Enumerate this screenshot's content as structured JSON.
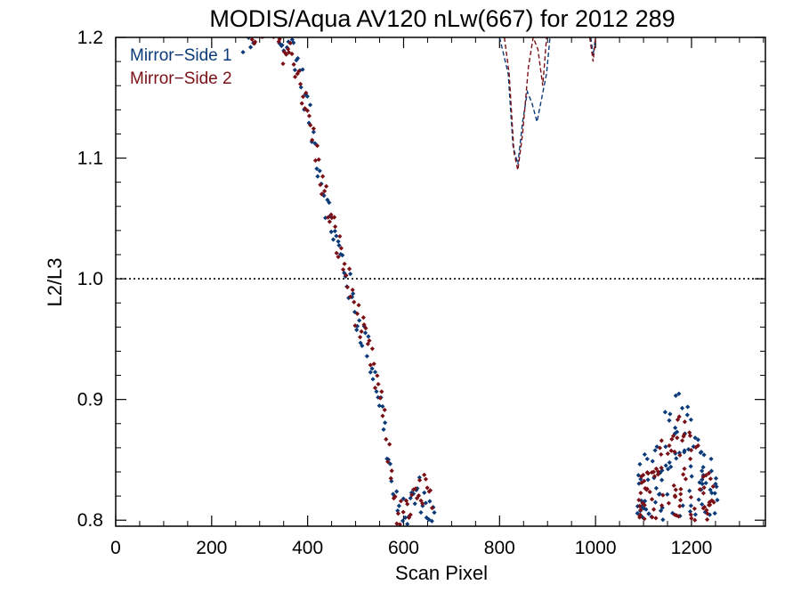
{
  "chart_data": {
    "type": "scatter",
    "title": "MODIS/Aqua AV120 nLw(667) for 2012 289",
    "xlabel": "Scan Pixel",
    "ylabel": "L2/L3",
    "xlim": [
      0,
      1354
    ],
    "ylim": [
      0.795,
      1.2
    ],
    "x_ticks": [
      0,
      200,
      400,
      600,
      800,
      1000,
      1200
    ],
    "x_tick_labels": [
      "0",
      "200",
      "400",
      "600",
      "800",
      "1000",
      "1200"
    ],
    "y_ticks": [
      0.8,
      0.9,
      1.0,
      1.1,
      1.2
    ],
    "y_tick_labels": [
      "0.8",
      "0.9",
      "1.0",
      "1.1",
      "1.2"
    ],
    "reference_line": {
      "y": 1.0,
      "style": "dotted",
      "color": "#000000"
    },
    "legend": {
      "position": "top-left"
    },
    "series": [
      {
        "name": "Mirror−Side 1",
        "color": "#0b3a78",
        "anchors": [
          [
            255,
            1.2
          ],
          [
            275,
            1.195
          ],
          [
            300,
            1.22
          ],
          [
            330,
            1.21
          ],
          [
            345,
            1.195
          ],
          [
            365,
            1.2
          ],
          [
            385,
            1.17
          ],
          [
            400,
            1.14
          ],
          [
            420,
            1.1
          ],
          [
            440,
            1.06
          ],
          [
            460,
            1.03
          ],
          [
            480,
            1.005
          ],
          [
            500,
            0.97
          ],
          [
            520,
            0.95
          ],
          [
            540,
            0.92
          ],
          [
            560,
            0.88
          ],
          [
            575,
            0.83
          ],
          [
            590,
            0.8
          ],
          [
            605,
            0.805
          ],
          [
            630,
            0.825
          ],
          [
            650,
            0.81
          ],
          [
            665,
            0.8
          ]
        ],
        "clusters": [
          {
            "x": [
              1085,
              1255
            ],
            "y": [
              0.8,
              0.915
            ]
          }
        ],
        "dashed": [
          [
            800,
            1.2
          ],
          [
            818,
            1.17
          ],
          [
            828,
            1.11
          ],
          [
            838,
            1.095
          ],
          [
            848,
            1.13
          ],
          [
            858,
            1.155
          ],
          [
            868,
            1.145
          ],
          [
            878,
            1.13
          ],
          [
            888,
            1.15
          ],
          [
            898,
            1.17
          ],
          [
            905,
            1.2
          ]
        ],
        "dashed2": [
          [
            990,
            1.2
          ],
          [
            995,
            1.185
          ],
          [
            1000,
            1.2
          ]
        ]
      },
      {
        "name": "Mirror−Side 2",
        "color": "#7a1016",
        "anchors": [
          [
            285,
            1.205
          ],
          [
            310,
            1.21
          ],
          [
            335,
            1.2
          ],
          [
            355,
            1.19
          ],
          [
            375,
            1.18
          ],
          [
            392,
            1.15
          ],
          [
            410,
            1.12
          ],
          [
            430,
            1.08
          ],
          [
            450,
            1.045
          ],
          [
            470,
            1.02
          ],
          [
            490,
            0.99
          ],
          [
            510,
            0.96
          ],
          [
            530,
            0.935
          ],
          [
            550,
            0.905
          ],
          [
            570,
            0.85
          ],
          [
            585,
            0.81
          ],
          [
            600,
            0.8
          ],
          [
            625,
            0.815
          ],
          [
            645,
            0.83
          ],
          [
            660,
            0.805
          ]
        ],
        "clusters": [
          {
            "x": [
              1090,
              1250
            ],
            "y": [
              0.8,
              0.9
            ]
          }
        ],
        "dashed": [
          [
            810,
            1.2
          ],
          [
            820,
            1.17
          ],
          [
            830,
            1.105
          ],
          [
            838,
            1.09
          ],
          [
            848,
            1.12
          ],
          [
            860,
            1.175
          ],
          [
            870,
            1.2
          ],
          [
            880,
            1.19
          ],
          [
            890,
            1.16
          ],
          [
            898,
            1.2
          ]
        ],
        "dashed2": [
          [
            988,
            1.2
          ],
          [
            995,
            1.18
          ],
          [
            1000,
            1.2
          ]
        ]
      }
    ]
  }
}
